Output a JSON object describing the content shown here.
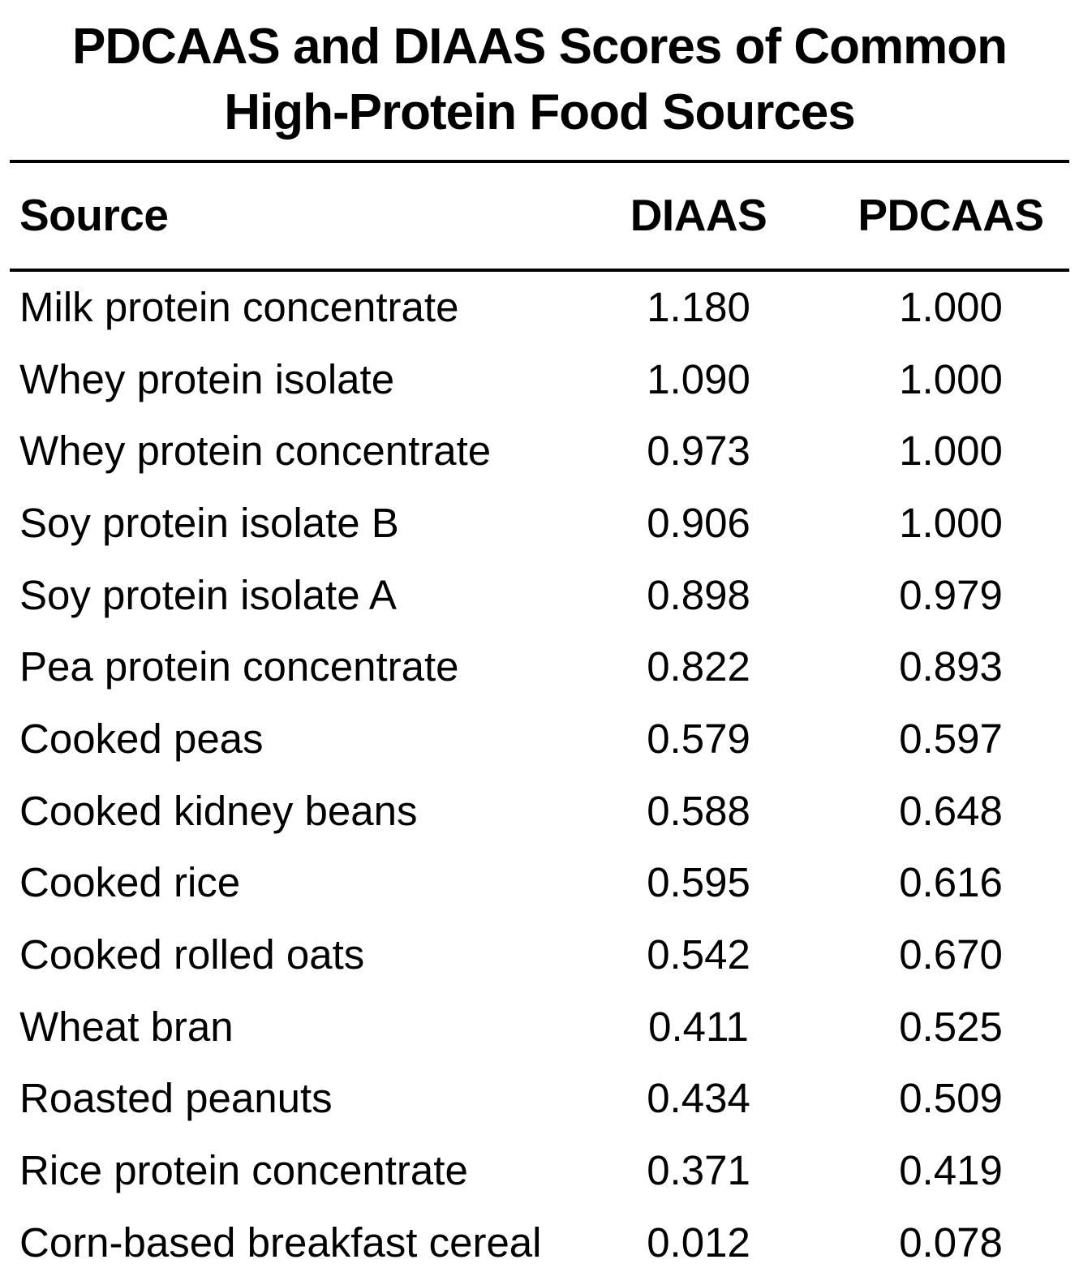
{
  "title_lines": [
    "PDCAAS and DIAAS Scores of Common",
    "High-Protein Food Sources"
  ],
  "chart_data": {
    "type": "table",
    "title": "PDCAAS and DIAAS Scores of Common High-Protein Food Sources",
    "columns": [
      "Source",
      "DIAAS",
      "PDCAAS"
    ],
    "rows": [
      [
        "Milk protein concentrate",
        "1.180",
        "1.000"
      ],
      [
        "Whey protein isolate",
        "1.090",
        "1.000"
      ],
      [
        "Whey protein concentrate",
        "0.973",
        "1.000"
      ],
      [
        "Soy protein isolate B",
        "0.906",
        "1.000"
      ],
      [
        "Soy protein isolate A",
        "0.898",
        "0.979"
      ],
      [
        "Pea protein concentrate",
        "0.822",
        "0.893"
      ],
      [
        "Cooked peas",
        "0.579",
        "0.597"
      ],
      [
        "Cooked kidney beans",
        "0.588",
        "0.648"
      ],
      [
        "Cooked rice",
        "0.595",
        "0.616"
      ],
      [
        "Cooked rolled oats",
        "0.542",
        "0.670"
      ],
      [
        "Wheat bran",
        "0.411",
        "0.525"
      ],
      [
        "Roasted peanuts",
        "0.434",
        "0.509"
      ],
      [
        "Rice protein concentrate",
        "0.371",
        "0.419"
      ],
      [
        "Corn-based breakfast cereal",
        "0.012",
        "0.078"
      ]
    ]
  },
  "colors": {
    "background": "#ffffff",
    "text": "#000000",
    "rule": "#000000"
  }
}
